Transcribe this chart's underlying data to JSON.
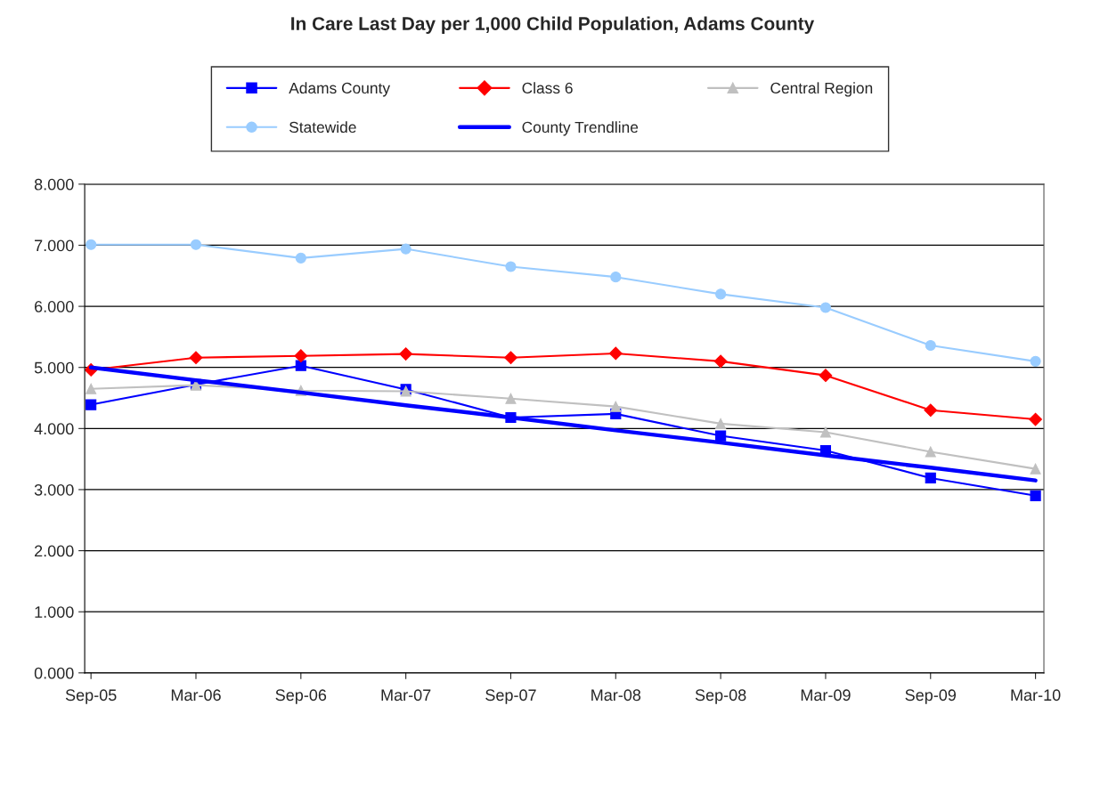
{
  "chart_data": {
    "type": "line",
    "title": "In Care Last Day per 1,000 Child Population, Adams County",
    "categories": [
      "Sep-05",
      "Mar-06",
      "Sep-06",
      "Mar-07",
      "Sep-07",
      "Mar-08",
      "Sep-08",
      "Mar-09",
      "Sep-09",
      "Mar-10"
    ],
    "series": [
      {
        "name": "Adams County",
        "color": "#0000ff",
        "marker": "square",
        "values": [
          4.39,
          4.72,
          5.03,
          4.64,
          4.18,
          4.24,
          3.88,
          3.64,
          3.19,
          2.9
        ]
      },
      {
        "name": "Class 6",
        "color": "#ff0000",
        "marker": "diamond",
        "values": [
          4.96,
          5.16,
          5.19,
          5.22,
          5.16,
          5.23,
          5.1,
          4.87,
          4.3,
          4.15
        ]
      },
      {
        "name": "Central Region",
        "color": "#c0c0c0",
        "marker": "triangle",
        "values": [
          4.65,
          4.71,
          4.62,
          4.61,
          4.49,
          4.36,
          4.08,
          3.94,
          3.62,
          3.34
        ]
      },
      {
        "name": "Statewide",
        "color": "#99ccff",
        "marker": "circle",
        "values": [
          7.01,
          7.01,
          6.79,
          6.94,
          6.65,
          6.48,
          6.2,
          5.98,
          5.36,
          5.1
        ]
      },
      {
        "name": "County Trendline",
        "color": "#0000ff",
        "marker": "none",
        "values": [
          5.0,
          4.79,
          4.59,
          4.38,
          4.18,
          3.97,
          3.77,
          3.56,
          3.36,
          3.15
        ]
      }
    ],
    "ylim": [
      0,
      8
    ],
    "yticks": [
      {
        "value": 0,
        "label": "0.000"
      },
      {
        "value": 1,
        "label": "1.000"
      },
      {
        "value": 2,
        "label": "2.000"
      },
      {
        "value": 3,
        "label": "3.000"
      },
      {
        "value": 4,
        "label": "4.000"
      },
      {
        "value": 5,
        "label": "5.000"
      },
      {
        "value": 6,
        "label": "6.000"
      },
      {
        "value": 7,
        "label": "7.000"
      },
      {
        "value": 8,
        "label": "8.000"
      }
    ],
    "grid": "y",
    "legend": "top",
    "line_style": "solid"
  }
}
